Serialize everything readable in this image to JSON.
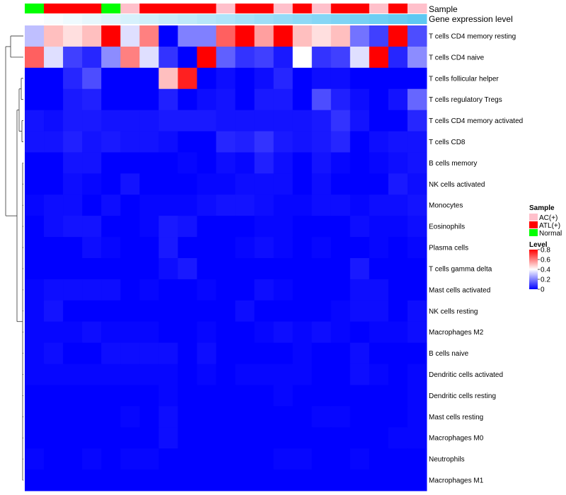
{
  "chart_data": {
    "type": "heatmap",
    "title": "",
    "annotations": {
      "sample_track_label": "Sample",
      "expression_track_label": "Gene expression level"
    },
    "columns": {
      "sample_groups": [
        "Normal",
        "ATL(+)",
        "ATL(+)",
        "ATL(+)",
        "Normal",
        "AC(+)",
        "ATL(+)",
        "ATL(+)",
        "ATL(+)",
        "ATL(+)",
        "AC(+)",
        "ATL(+)",
        "ATL(+)",
        "AC(+)",
        "ATL(+)",
        "AC(+)",
        "ATL(+)",
        "ATL(+)",
        "AC(+)",
        "ATL(+)",
        "AC(+)"
      ],
      "expression_level": [
        0.0,
        0.05,
        0.1,
        0.15,
        0.2,
        0.25,
        0.3,
        0.35,
        0.4,
        0.45,
        0.5,
        0.55,
        0.6,
        0.65,
        0.7,
        0.75,
        0.8,
        0.85,
        0.9,
        0.95,
        1.0
      ]
    },
    "rows": [
      {
        "label": "T cells CD4 memory resting",
        "values": [
          0.3,
          0.5,
          0.45,
          0.5,
          0.8,
          0.35,
          0.6,
          0.0,
          0.2,
          0.2,
          0.65,
          0.8,
          0.55,
          0.8,
          0.5,
          0.45,
          0.5,
          0.18,
          0.1,
          0.8,
          0.12
        ]
      },
      {
        "label": "T cells CD4 naive",
        "values": [
          0.65,
          0.35,
          0.1,
          0.06,
          0.22,
          0.6,
          0.35,
          0.08,
          0.0,
          0.8,
          0.15,
          0.08,
          0.1,
          0.04,
          0.4,
          0.08,
          0.1,
          0.35,
          0.8,
          0.06,
          0.22
        ]
      },
      {
        "label": "T cells follicular helper",
        "values": [
          0.0,
          0.0,
          0.06,
          0.12,
          0.0,
          0.0,
          0.0,
          0.5,
          0.75,
          0.0,
          0.02,
          0.0,
          0.02,
          0.06,
          0.0,
          0.02,
          0.02,
          0.0,
          0.0,
          0.0,
          0.0
        ]
      },
      {
        "label": "T cells regulatory  Tregs",
        "values": [
          0.0,
          0.0,
          0.04,
          0.05,
          0.0,
          0.0,
          0.0,
          0.05,
          0.0,
          0.02,
          0.03,
          0.0,
          0.04,
          0.04,
          0.0,
          0.12,
          0.05,
          0.02,
          0.0,
          0.03,
          0.16
        ]
      },
      {
        "label": "T cells CD4 memory activated",
        "values": [
          0.03,
          0.02,
          0.04,
          0.04,
          0.03,
          0.03,
          0.03,
          0.04,
          0.04,
          0.04,
          0.03,
          0.03,
          0.03,
          0.03,
          0.03,
          0.04,
          0.08,
          0.03,
          0.0,
          0.0,
          0.06
        ]
      },
      {
        "label": "T cells CD8",
        "values": [
          0.03,
          0.03,
          0.05,
          0.03,
          0.04,
          0.03,
          0.03,
          0.02,
          0.0,
          0.0,
          0.06,
          0.05,
          0.08,
          0.04,
          0.03,
          0.04,
          0.06,
          0.0,
          0.02,
          0.03,
          0.03
        ]
      },
      {
        "label": "B cells memory",
        "values": [
          0.0,
          0.0,
          0.03,
          0.03,
          0.0,
          0.0,
          0.0,
          0.0,
          0.01,
          0.0,
          0.02,
          0.01,
          0.05,
          0.02,
          0.0,
          0.03,
          0.01,
          0.0,
          0.01,
          0.02,
          0.03
        ]
      },
      {
        "label": "NK cells activated",
        "values": [
          0.0,
          0.0,
          0.02,
          0.01,
          0.0,
          0.03,
          0.0,
          0.0,
          0.0,
          0.01,
          0.01,
          0.02,
          0.02,
          0.02,
          0.0,
          0.02,
          0.0,
          0.0,
          0.0,
          0.04,
          0.02
        ]
      },
      {
        "label": "Monocytes",
        "values": [
          0.01,
          0.02,
          0.02,
          0.0,
          0.02,
          0.0,
          0.01,
          0.01,
          0.01,
          0.02,
          0.03,
          0.03,
          0.02,
          0.01,
          0.01,
          0.02,
          0.02,
          0.01,
          0.02,
          0.02,
          0.03
        ]
      },
      {
        "label": "Eosinophils",
        "values": [
          0.0,
          0.02,
          0.03,
          0.03,
          0.0,
          0.0,
          0.01,
          0.04,
          0.03,
          0.0,
          0.0,
          0.0,
          0.01,
          0.01,
          0.0,
          0.0,
          0.0,
          0.02,
          0.01,
          0.01,
          0.02
        ]
      },
      {
        "label": "Plasma cells",
        "values": [
          0.0,
          0.0,
          0.0,
          0.02,
          0.01,
          0.0,
          0.0,
          0.04,
          0.0,
          0.0,
          0.0,
          0.01,
          0.02,
          0.01,
          0.0,
          0.01,
          0.0,
          0.0,
          0.01,
          0.0,
          0.01
        ]
      },
      {
        "label": "T cells gamma delta",
        "values": [
          0.0,
          0.0,
          0.0,
          0.0,
          0.0,
          0.0,
          0.0,
          0.02,
          0.04,
          0.0,
          0.0,
          0.0,
          0.0,
          0.0,
          0.0,
          0.0,
          0.0,
          0.04,
          0.0,
          0.0,
          0.0
        ]
      },
      {
        "label": "Mast cells activated",
        "values": [
          0.01,
          0.02,
          0.02,
          0.02,
          0.02,
          0.0,
          0.01,
          0.0,
          0.0,
          0.01,
          0.0,
          0.0,
          0.02,
          0.01,
          0.0,
          0.0,
          0.0,
          0.02,
          0.02,
          0.0,
          0.0
        ]
      },
      {
        "label": "NK cells resting",
        "values": [
          0.01,
          0.03,
          0.0,
          0.0,
          0.0,
          0.0,
          0.0,
          0.0,
          0.0,
          0.0,
          0.0,
          0.02,
          0.0,
          0.0,
          0.0,
          0.0,
          0.01,
          0.02,
          0.02,
          0.0,
          0.02
        ]
      },
      {
        "label": "Macrophages M2",
        "values": [
          0.01,
          0.01,
          0.01,
          0.02,
          0.01,
          0.01,
          0.01,
          0.0,
          0.0,
          0.01,
          0.0,
          0.0,
          0.01,
          0.02,
          0.01,
          0.02,
          0.01,
          0.0,
          0.01,
          0.01,
          0.02
        ]
      },
      {
        "label": "B cells naive",
        "values": [
          0.01,
          0.02,
          0.0,
          0.0,
          0.02,
          0.02,
          0.02,
          0.02,
          0.0,
          0.02,
          0.0,
          0.0,
          0.0,
          0.0,
          0.01,
          0.0,
          0.0,
          0.02,
          0.0,
          0.0,
          0.0
        ]
      },
      {
        "label": "Dendritic cells activated",
        "values": [
          0.01,
          0.01,
          0.01,
          0.01,
          0.01,
          0.01,
          0.01,
          0.01,
          0.0,
          0.01,
          0.0,
          0.01,
          0.01,
          0.01,
          0.01,
          0.0,
          0.0,
          0.02,
          0.01,
          0.0,
          0.01
        ]
      },
      {
        "label": "Dendritic cells resting",
        "values": [
          0.0,
          0.0,
          0.0,
          0.0,
          0.0,
          0.0,
          0.0,
          0.01,
          0.0,
          0.0,
          0.0,
          0.0,
          0.0,
          0.01,
          0.0,
          0.0,
          0.0,
          0.0,
          0.0,
          0.0,
          0.01
        ]
      },
      {
        "label": "Mast cells resting",
        "values": [
          0.0,
          0.0,
          0.0,
          0.0,
          0.0,
          0.01,
          0.0,
          0.02,
          0.0,
          0.0,
          0.0,
          0.0,
          0.0,
          0.0,
          0.0,
          0.01,
          0.01,
          0.0,
          0.0,
          0.0,
          0.01
        ]
      },
      {
        "label": "Macrophages M0",
        "values": [
          0.0,
          0.0,
          0.0,
          0.0,
          0.0,
          0.0,
          0.0,
          0.02,
          0.0,
          0.0,
          0.0,
          0.0,
          0.0,
          0.0,
          0.0,
          0.0,
          0.0,
          0.0,
          0.0,
          0.01,
          0.01
        ]
      },
      {
        "label": "Neutrophils",
        "values": [
          0.01,
          0.0,
          0.0,
          0.01,
          0.0,
          0.01,
          0.01,
          0.0,
          0.0,
          0.0,
          0.0,
          0.0,
          0.0,
          0.01,
          0.01,
          0.0,
          0.0,
          0.01,
          0.0,
          0.0,
          0.0
        ]
      },
      {
        "label": "Macrophages M1",
        "values": [
          0.0,
          0.0,
          0.0,
          0.0,
          0.0,
          0.0,
          0.0,
          0.0,
          0.0,
          0.0,
          0.0,
          0.0,
          0.0,
          0.0,
          0.0,
          0.0,
          0.0,
          0.0,
          0.0,
          0.0,
          0.0
        ]
      }
    ],
    "color_scale": {
      "min": 0,
      "max": 0.8,
      "low": "#0000ff",
      "mid": "#ffffff",
      "high": "#ff0000",
      "midpoint": 0.4
    },
    "expression_scale": {
      "low": "#ffffff",
      "high": "#5ec8f2"
    },
    "legend": {
      "sample_title": "Sample",
      "sample_entries": [
        {
          "label": "AC(+)",
          "color": "#ffc0cb"
        },
        {
          "label": "ATL(+)",
          "color": "#ff0000"
        },
        {
          "label": "Normal",
          "color": "#00ff00"
        }
      ],
      "level_title": "Level",
      "level_ticks": [
        0.8,
        0.6,
        0.4,
        0.2,
        0
      ],
      "placement": "right"
    }
  }
}
